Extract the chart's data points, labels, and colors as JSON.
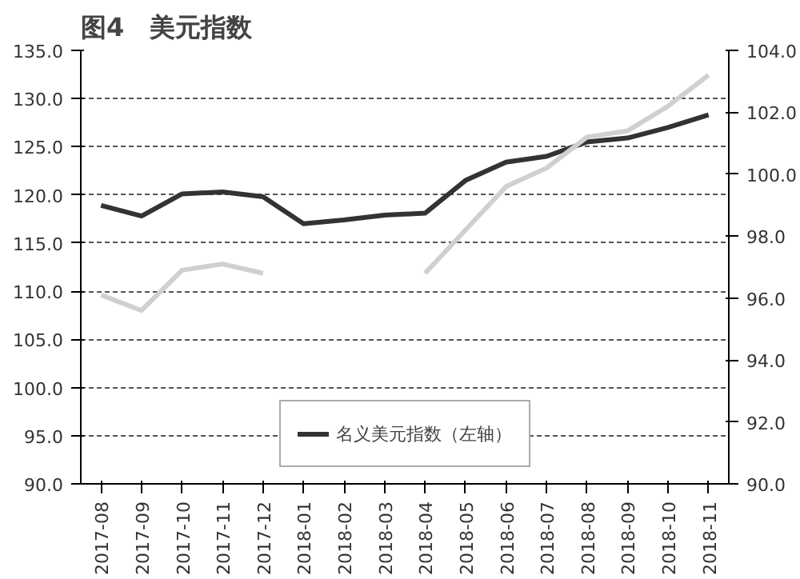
{
  "chart_data": {
    "type": "line",
    "title": "图4　美元指数",
    "categories": [
      "2017-08",
      "2017-09",
      "2017-10",
      "2017-11",
      "2017-12",
      "2018-01",
      "2018-02",
      "2018-03",
      "2018-04",
      "2018-05",
      "2018-06",
      "2018-07",
      "2018-08",
      "2018-09",
      "2018-10",
      "2018-11"
    ],
    "series": [
      {
        "name": "名义美元指数（左轴）",
        "color": "#333333",
        "values": [
          118.9,
          117.8,
          120.1,
          120.3,
          119.8,
          117.0,
          117.4,
          117.9,
          118.1,
          121.5,
          123.4,
          124.0,
          125.5,
          125.9,
          127.0,
          128.3
        ]
      },
      {
        "color": "#d0d0d0",
        "axis": "y2",
        "values": [
          96.1,
          95.6,
          96.9,
          97.1,
          96.8,
          null,
          null,
          null,
          96.8,
          98.2,
          99.6,
          100.2,
          101.2,
          101.4,
          102.2,
          103.2
        ]
      }
    ],
    "ylim": [
      90,
      135
    ],
    "yticks": [
      {
        "value": 90,
        "label": "90.0"
      },
      {
        "value": 95,
        "label": "95.0"
      },
      {
        "value": 100,
        "label": "100.0"
      },
      {
        "value": 105,
        "label": "105.0"
      },
      {
        "value": 110,
        "label": "110.0"
      },
      {
        "value": 115,
        "label": "115.0"
      },
      {
        "value": 120,
        "label": "120.0"
      },
      {
        "value": 125,
        "label": "125.0"
      },
      {
        "value": 130,
        "label": "130.0"
      },
      {
        "value": 135,
        "label": "135.0"
      }
    ],
    "y2lim": [
      90,
      104
    ],
    "y2ticks": [
      {
        "value": 90,
        "label": "90.0"
      },
      {
        "value": 92,
        "label": "92.0"
      },
      {
        "value": 94,
        "label": "94.0"
      },
      {
        "value": 96,
        "label": "96.0"
      },
      {
        "value": 98,
        "label": "98.0"
      },
      {
        "value": 100,
        "label": "100.0"
      },
      {
        "value": 102,
        "label": "102.0"
      },
      {
        "value": 104,
        "label": "104.0"
      }
    ],
    "grid": "y",
    "legend": "bottom",
    "line_style": "solid",
    "marker": "none"
  }
}
